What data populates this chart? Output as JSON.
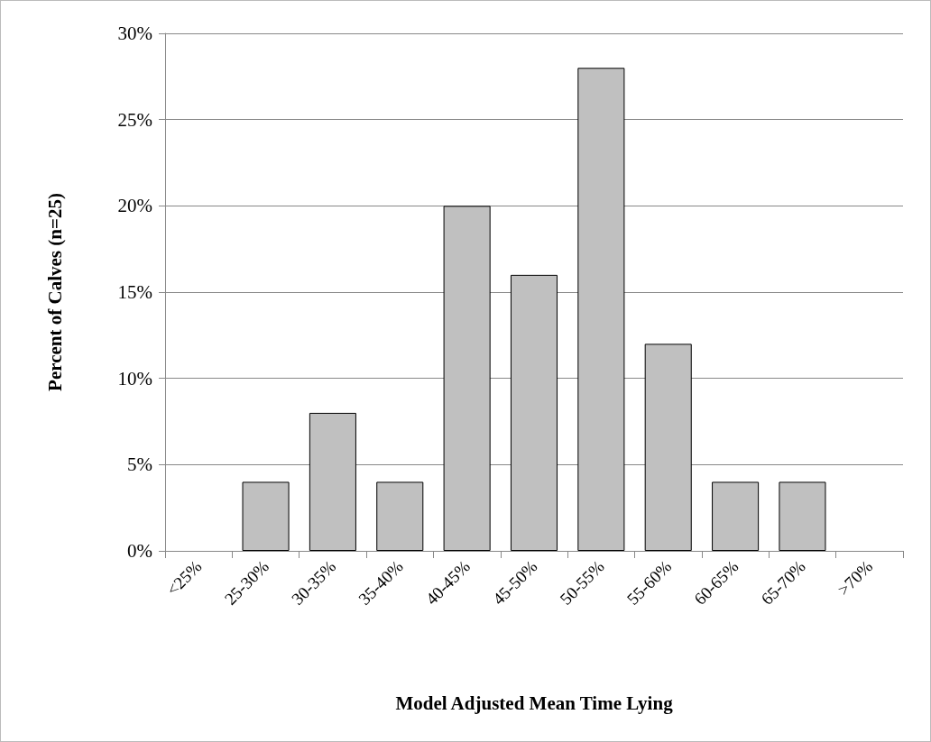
{
  "chart_data": {
    "type": "bar",
    "xlabel": "Model Adjusted Mean Time Lying",
    "ylabel": "Percent of Calves (n=25)",
    "categories": [
      "<25%",
      "25-30%",
      "30-35%",
      "35-40%",
      "40-45%",
      "45-50%",
      "50-55%",
      "55-60%",
      "60-65%",
      "65-70%",
      ">70%"
    ],
    "values": [
      0,
      4,
      8,
      4,
      20,
      16,
      28,
      12,
      4,
      4,
      0
    ],
    "color": "#c0c0c0",
    "ylim": [
      0,
      30
    ],
    "yticks": [
      {
        "value": 0,
        "label": "0%"
      },
      {
        "value": 5,
        "label": "5%"
      },
      {
        "value": 10,
        "label": "10%"
      },
      {
        "value": 15,
        "label": "15%"
      },
      {
        "value": 20,
        "label": "20%"
      },
      {
        "value": 25,
        "label": "25%"
      },
      {
        "value": 30,
        "label": "30%"
      }
    ],
    "grid": "y"
  }
}
